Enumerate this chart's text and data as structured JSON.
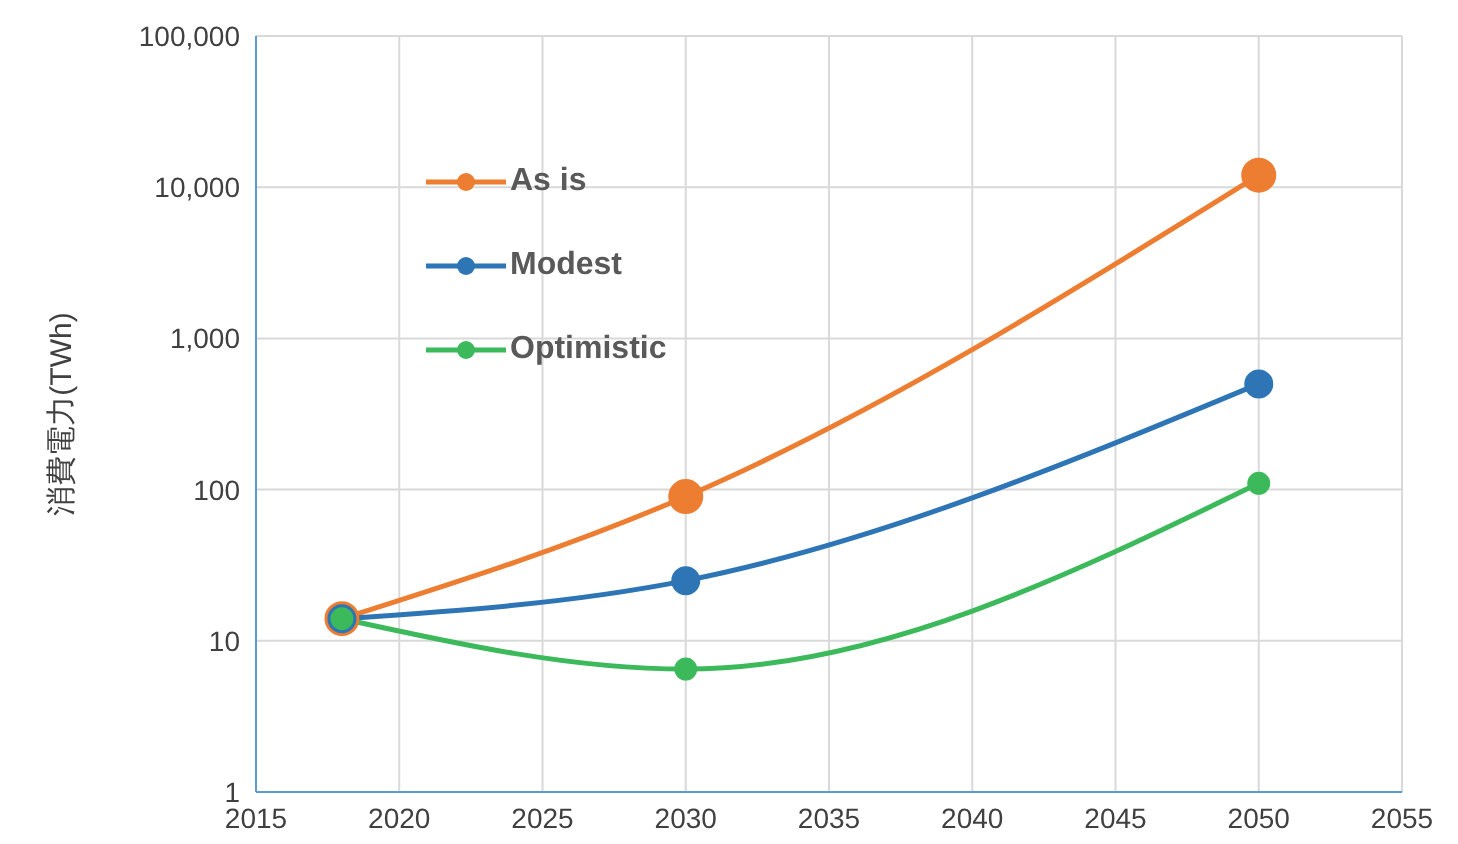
{
  "chart_data": {
    "type": "line",
    "ylabel": "消費電力(TWh)",
    "x": [
      2018,
      2030,
      2050
    ],
    "series": [
      {
        "name": "As is",
        "color": "#ed7d31",
        "values": [
          14,
          90,
          12000
        ]
      },
      {
        "name": "Modest",
        "color": "#2e75b6",
        "values": [
          14,
          25,
          500
        ]
      },
      {
        "name": "Optimistic",
        "color": "#3cb95a",
        "values": [
          14,
          6.5,
          110
        ]
      }
    ],
    "xlim": [
      2015,
      2055
    ],
    "xticks": [
      2015,
      2020,
      2025,
      2030,
      2035,
      2040,
      2045,
      2050,
      2055
    ],
    "ylim": [
      1,
      100000
    ],
    "yticks": [
      {
        "value": 1,
        "label": "1"
      },
      {
        "value": 10,
        "label": "10"
      },
      {
        "value": 100,
        "label": "100"
      },
      {
        "value": 1000,
        "label": "1,000"
      },
      {
        "value": 10000,
        "label": "10,000"
      },
      {
        "value": 100000,
        "label": "100,000"
      }
    ],
    "log": "y",
    "grid": true,
    "legend": "top left",
    "marker": "circle",
    "line_style": "solid"
  }
}
